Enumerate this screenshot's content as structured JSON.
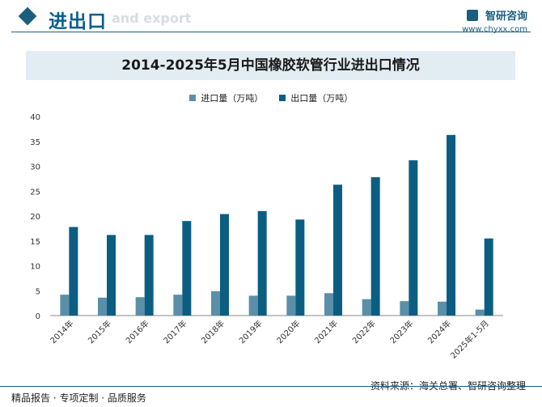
{
  "header": {
    "section_title": "进出口",
    "section_subtitle": "and export",
    "brand_name": "智研咨询",
    "brand_url": "www.chyxx.com"
  },
  "footer": {
    "left_text": "精品报告 · 专项定制 · 品质服务",
    "source_text": "资料来源：海关总署、智研咨询整理"
  },
  "colors": {
    "import": "#5b8fa8",
    "export": "#0b5e82"
  },
  "chart_data": {
    "type": "bar",
    "title": "2014-2025年5月中国橡胶软管行业进出口情况",
    "categories": [
      "2014年",
      "2015年",
      "2016年",
      "2017年",
      "2018年",
      "2019年",
      "2020年",
      "2021年",
      "2022年",
      "2023年",
      "2024年",
      "2025年1-5月"
    ],
    "series": [
      {
        "name": "进口量（万吨）",
        "values": [
          4.2,
          3.6,
          3.7,
          4.2,
          4.9,
          4.0,
          4.0,
          4.5,
          3.3,
          2.9,
          2.8,
          1.2
        ]
      },
      {
        "name": "出口量（万吨）",
        "values": [
          17.8,
          16.2,
          16.2,
          19.0,
          20.4,
          21.0,
          19.3,
          26.3,
          27.8,
          31.2,
          36.3,
          15.5
        ]
      }
    ],
    "ylim": [
      0,
      40
    ],
    "yticks": [
      0,
      5,
      10,
      15,
      20,
      25,
      30,
      35,
      40
    ],
    "xlabel": "",
    "ylabel": "",
    "legend_position": "top-center"
  }
}
